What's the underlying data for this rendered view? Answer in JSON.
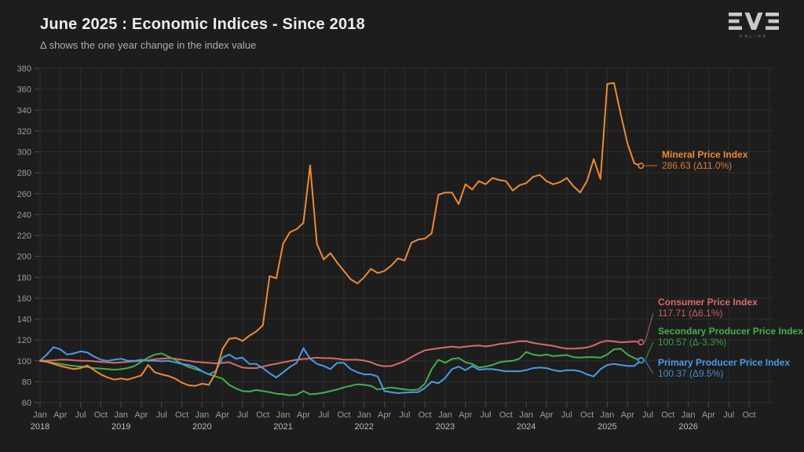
{
  "header": {
    "title": "June 2025 : Economic Indices - Since 2018",
    "subtitle": "Δ shows the one year change in the index value"
  },
  "logo": {
    "name": "EVE",
    "subtext": "ONLINE"
  },
  "chart_data": {
    "type": "line",
    "title": "June 2025 : Economic Indices - Since 2018",
    "subtitle": "Δ shows the one year change in the index value",
    "x_start": "2018-01",
    "x_end_data": "2025-06",
    "x_axis_end": "2026-10",
    "x_tick_months": [
      "Jan",
      "Apr",
      "Jul",
      "Oct"
    ],
    "x_years": [
      "2018",
      "2019",
      "2020",
      "2021",
      "2022",
      "2023",
      "2024",
      "2025",
      "2026"
    ],
    "y_axis": {
      "min": 60,
      "max": 380,
      "step": 20
    },
    "grid": true,
    "legend_position": "end-of-line-labels",
    "series": [
      {
        "name": "Consumer Price Index",
        "color": "#D96A6A",
        "end_value": 117.71,
        "end_value_label": "117.71 (Δ6.1%)",
        "values": [
          100,
          100.2,
          100.5,
          101,
          101,
          100.5,
          100,
          100,
          99.5,
          99,
          98.5,
          98,
          98.5,
          99,
          99.5,
          100,
          100.5,
          101.5,
          102,
          102.5,
          102,
          101,
          100,
          99,
          98.5,
          98,
          97.5,
          98,
          98.5,
          96,
          93.5,
          93,
          93,
          94.5,
          96,
          97.2,
          98.5,
          99.7,
          101,
          101.7,
          102.2,
          103,
          102.5,
          102.5,
          102,
          101,
          101,
          101,
          100.2,
          98.5,
          96,
          94.7,
          95,
          97.2,
          99.7,
          103.5,
          107,
          110,
          111,
          112,
          112.7,
          113.5,
          112.7,
          113.5,
          114.2,
          114.7,
          113.7,
          114.7,
          116,
          116.7,
          117.7,
          118.7,
          118.7,
          117.2,
          116,
          115.2,
          114.2,
          112.7,
          111.7,
          111.7,
          112,
          112.7,
          114.7,
          117.7,
          119.2,
          118.5,
          117.7,
          118,
          118.5,
          117.71
        ]
      },
      {
        "name": "Secondary Producer Price Index",
        "color": "#45AE4D",
        "end_value": 100.57,
        "end_value_label": "100.57 (Δ-3.3%)",
        "values": [
          100,
          99,
          98,
          97,
          96,
          95,
          94.5,
          94,
          93,
          92.5,
          92,
          91.5,
          92,
          93,
          95,
          99,
          103,
          106,
          107,
          104,
          101,
          97,
          94,
          92,
          90,
          87,
          85,
          83,
          77,
          73.5,
          71,
          70.5,
          72,
          71,
          70,
          68.5,
          68,
          67,
          67.5,
          71,
          68,
          68.5,
          69.5,
          71,
          72.5,
          74.5,
          76,
          77.5,
          77,
          76,
          72.5,
          73.5,
          74.5,
          73.5,
          72.5,
          72,
          72.5,
          78,
          92,
          101,
          98,
          101.7,
          102.7,
          98.5,
          97,
          93.5,
          94.5,
          96,
          98.5,
          99.5,
          100,
          102,
          108.5,
          106,
          105,
          106,
          104.5,
          105,
          105.5,
          103.5,
          103,
          103.5,
          103.5,
          103,
          106,
          111,
          111.5,
          106,
          102.5,
          100.57
        ]
      },
      {
        "name": "Primary Producer Price Index",
        "color": "#4A9BE8",
        "end_value": 100.37,
        "end_value_label": "100.37 (Δ9.5%)",
        "values": [
          100,
          106,
          113,
          111,
          106,
          107,
          109,
          108,
          104,
          101,
          100,
          101,
          102,
          100,
          100,
          101,
          100,
          100,
          99.5,
          100,
          98.5,
          97,
          96,
          94,
          90,
          87,
          90,
          103,
          106,
          102,
          103,
          97,
          97,
          93,
          88,
          84,
          89,
          94,
          98,
          112,
          102,
          97,
          95,
          92,
          98,
          98,
          92,
          89,
          87,
          87,
          85,
          71,
          70,
          69,
          69.5,
          70,
          70,
          74,
          80,
          78.5,
          83.5,
          92,
          94.5,
          91,
          95,
          91.5,
          92,
          92,
          91,
          90,
          90,
          90,
          91,
          93,
          93.5,
          93,
          91,
          90,
          91,
          91,
          90,
          87,
          85,
          92,
          96,
          97,
          96,
          95,
          95,
          100.37
        ]
      },
      {
        "name": "Mineral Price Index",
        "color": "#EE8A34",
        "end_value": 286.63,
        "end_value_label": "286.63 (Δ11.0%)",
        "values": [
          100,
          99,
          97,
          95,
          93.5,
          92,
          93,
          95.5,
          91,
          87,
          84,
          82,
          83,
          82,
          84,
          86,
          96,
          89,
          87,
          85.5,
          83,
          79,
          76.5,
          76,
          78,
          77,
          88,
          111,
          121,
          122,
          119,
          124,
          128,
          134,
          181,
          179,
          212,
          223,
          226,
          232,
          287,
          212,
          197,
          203,
          194,
          186,
          178,
          174,
          180,
          188,
          184,
          186,
          191,
          198,
          196,
          213,
          216,
          217,
          222,
          259,
          261,
          261,
          250,
          269,
          264,
          272,
          269,
          275,
          273,
          272,
          263,
          268,
          270,
          276,
          278,
          272,
          269,
          271,
          275,
          267,
          261,
          272,
          293,
          274,
          365,
          366,
          336,
          308,
          289,
          286.63
        ]
      }
    ]
  }
}
